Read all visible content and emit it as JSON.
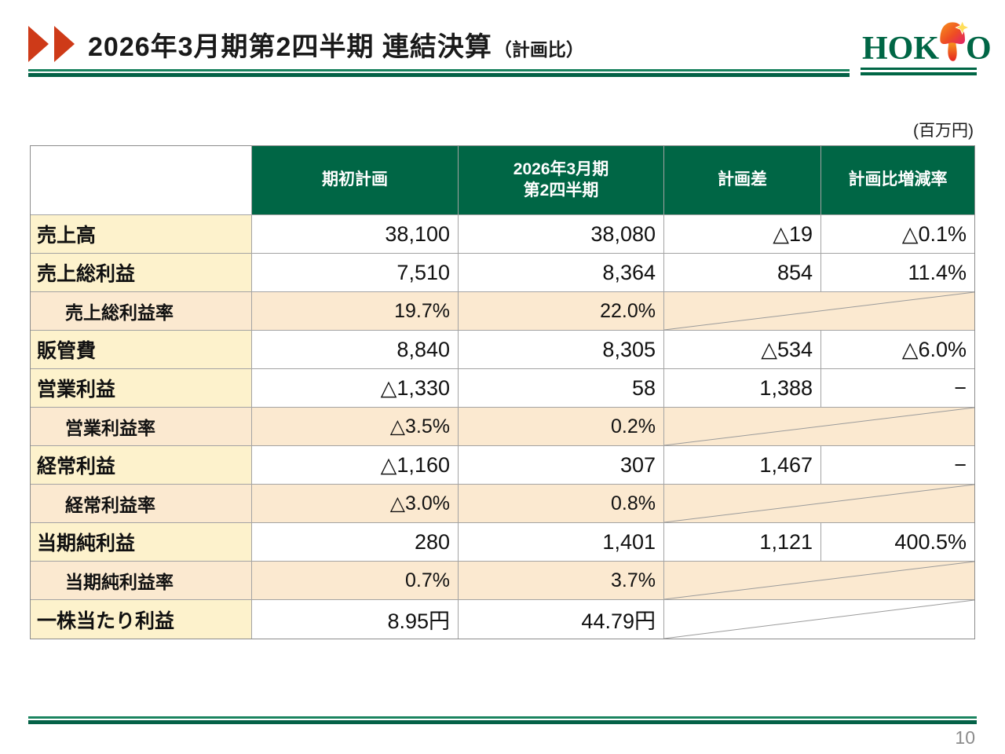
{
  "page": {
    "title_main": "2026年3月期第2四半期 連結決算",
    "title_sub": "（計画比）",
    "unit_note": "(百万円)",
    "page_number": "10"
  },
  "logo": {
    "prefix": "HOK",
    "suffix": "O",
    "icon": "mushroom-icon"
  },
  "colors": {
    "header_green": "#006645",
    "label_yellow": "#FDF2CC",
    "rate_peach": "#FBE9D0",
    "accent_red": "#CE3A18",
    "line_green": "#046247"
  },
  "table": {
    "headers": {
      "corner": "",
      "plan": "期初計画",
      "actual_line1": "2026年3月期",
      "actual_line2": "第2四半期",
      "diff": "計画差",
      "rate": "計画比増減率"
    },
    "rows": [
      {
        "label": "売上高",
        "tone": "normal",
        "indent": false,
        "plan": "38,100",
        "actual": "38,080",
        "diff": "△19",
        "rate": "△0.1%",
        "merged": false
      },
      {
        "label": "売上総利益",
        "tone": "normal",
        "indent": false,
        "plan": "7,510",
        "actual": "8,364",
        "diff": "854",
        "rate": "11.4%",
        "merged": false
      },
      {
        "label": "売上総利益率",
        "tone": "rate",
        "indent": true,
        "plan": "19.7%",
        "actual": "22.0%",
        "diff": "",
        "rate": "",
        "merged": true
      },
      {
        "label": "販管費",
        "tone": "normal",
        "indent": false,
        "plan": "8,840",
        "actual": "8,305",
        "diff": "△534",
        "rate": "△6.0%",
        "merged": false
      },
      {
        "label": "営業利益",
        "tone": "normal",
        "indent": false,
        "plan": "△1,330",
        "actual": "58",
        "diff": "1,388",
        "rate": "−",
        "merged": false
      },
      {
        "label": "営業利益率",
        "tone": "rate",
        "indent": true,
        "plan": "△3.5%",
        "actual": "0.2%",
        "diff": "",
        "rate": "",
        "merged": true
      },
      {
        "label": "経常利益",
        "tone": "normal",
        "indent": false,
        "plan": "△1,160",
        "actual": "307",
        "diff": "1,467",
        "rate": "−",
        "merged": false
      },
      {
        "label": "経常利益率",
        "tone": "rate",
        "indent": true,
        "plan": "△3.0%",
        "actual": "0.8%",
        "diff": "",
        "rate": "",
        "merged": true
      },
      {
        "label": "当期純利益",
        "tone": "normal",
        "indent": false,
        "plan": "280",
        "actual": "1,401",
        "diff": "1,121",
        "rate": "400.5%",
        "merged": false
      },
      {
        "label": "当期純利益率",
        "tone": "rate",
        "indent": true,
        "plan": "0.7%",
        "actual": "3.7%",
        "diff": "",
        "rate": "",
        "merged": true
      },
      {
        "label": "一株当たり利益",
        "tone": "normal",
        "indent": false,
        "plan": "8.95円",
        "actual": "44.79円",
        "diff": "",
        "rate": "",
        "merged": true
      }
    ]
  }
}
